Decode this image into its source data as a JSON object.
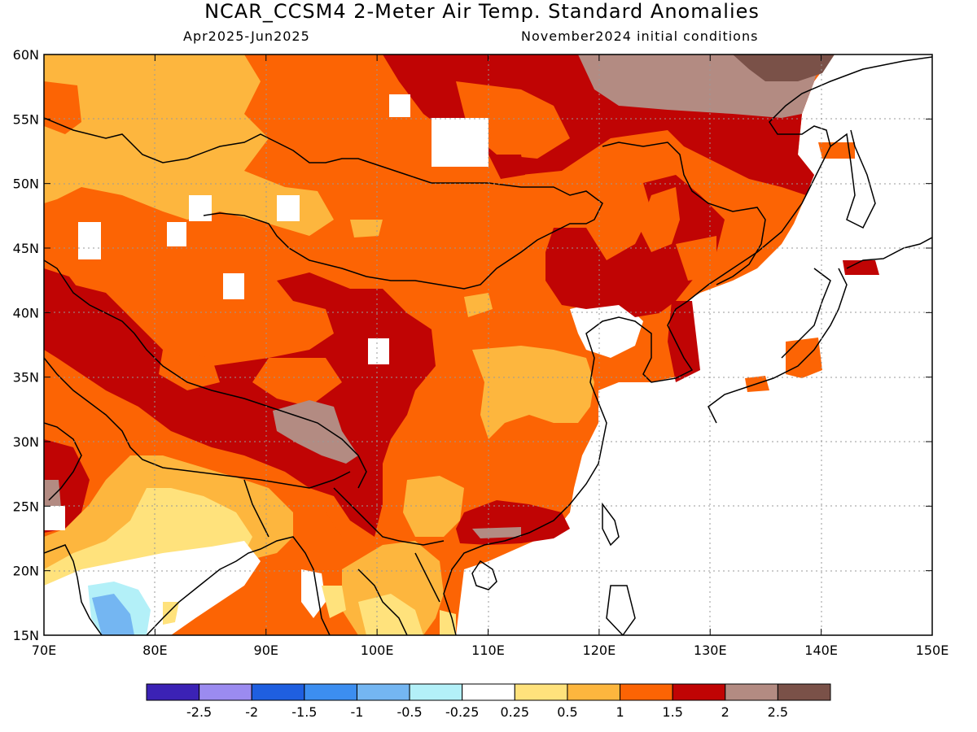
{
  "title": "NCAR_CCSM4 2-Meter Air Temp. Standard Anomalies",
  "subtitle_left": "Apr2025-Jun2025",
  "subtitle_right": "November2024 initial conditions",
  "map": {
    "lon_range": [
      70,
      150
    ],
    "lat_range": [
      15,
      60
    ],
    "lon_labels": [
      "70E",
      "80E",
      "90E",
      "100E",
      "110E",
      "120E",
      "130E",
      "140E",
      "150E"
    ],
    "lat_labels": [
      "60N",
      "55N",
      "50N",
      "45N",
      "40N",
      "35N",
      "30N",
      "25N",
      "20N",
      "15N"
    ],
    "grid": "dotted"
  },
  "colorbar": {
    "colors": [
      "#3b22b5",
      "#9b8bf0",
      "#1f5fe0",
      "#3c8ef0",
      "#74b6f2",
      "#b3f0f8",
      "#ffffff",
      "#ffe27c",
      "#fdb63e",
      "#fc6404",
      "#c00404",
      "#b38b82",
      "#7a5148"
    ],
    "labels": [
      "-2.5",
      "-2",
      "-1.5",
      "-1",
      "-0.5",
      "-0.25",
      "0.25",
      "0.5",
      "1",
      "1.5",
      "2",
      "2.5"
    ]
  }
}
